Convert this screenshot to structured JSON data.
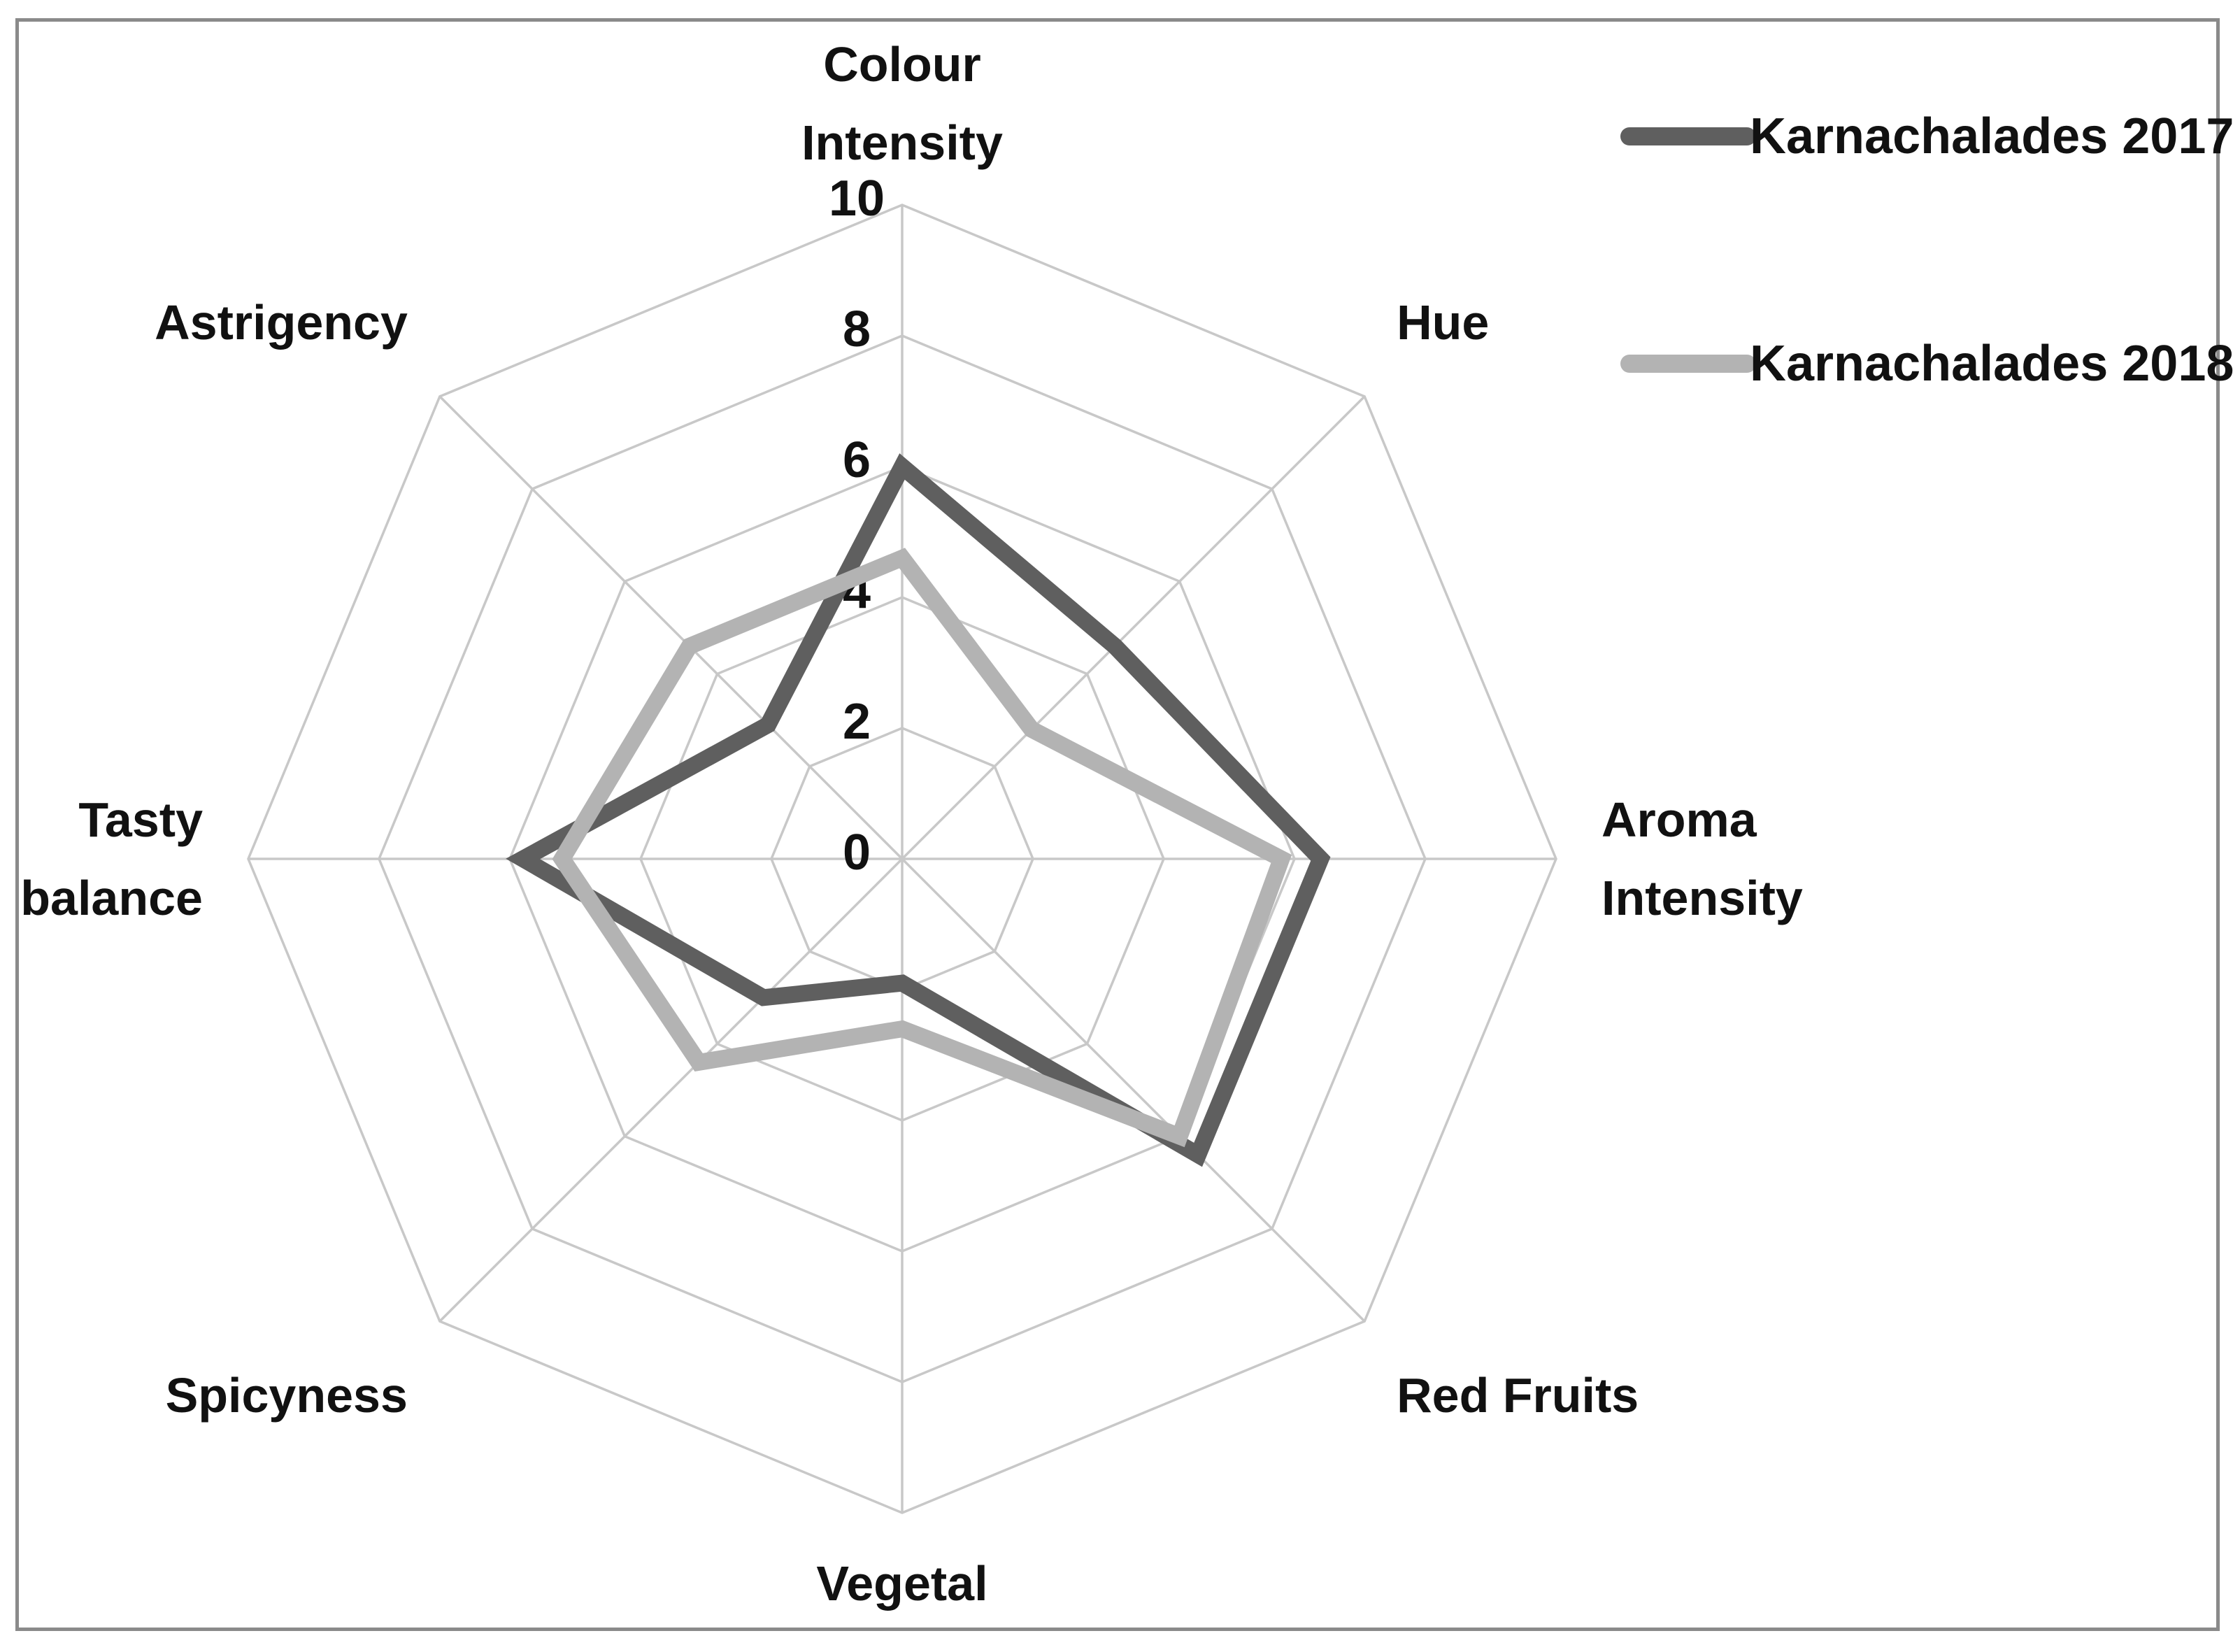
{
  "chart_data": {
    "type": "radar",
    "categories": [
      "Colour\nIntensity",
      "Hue",
      "Aroma\nIntensity",
      "Red Fruits",
      "Vegetal",
      "Spicyness",
      "Tasty\nbalance",
      "Astrigency"
    ],
    "ticks": [
      "0",
      "2",
      "4",
      "6",
      "8",
      "10"
    ],
    "rlim": [
      0,
      10
    ],
    "grid": true,
    "legend": "top-right",
    "series": [
      {
        "name": "Karnachalades 2017",
        "color": "#5f5f5f",
        "values": [
          6.0,
          4.6,
          6.4,
          6.4,
          1.9,
          3.0,
          5.8,
          2.9
        ]
      },
      {
        "name": "Karnachalades 2018",
        "color": "#b3b3b3",
        "values": [
          4.6,
          2.8,
          5.8,
          6.0,
          2.6,
          4.4,
          5.2,
          4.6
        ]
      }
    ]
  }
}
